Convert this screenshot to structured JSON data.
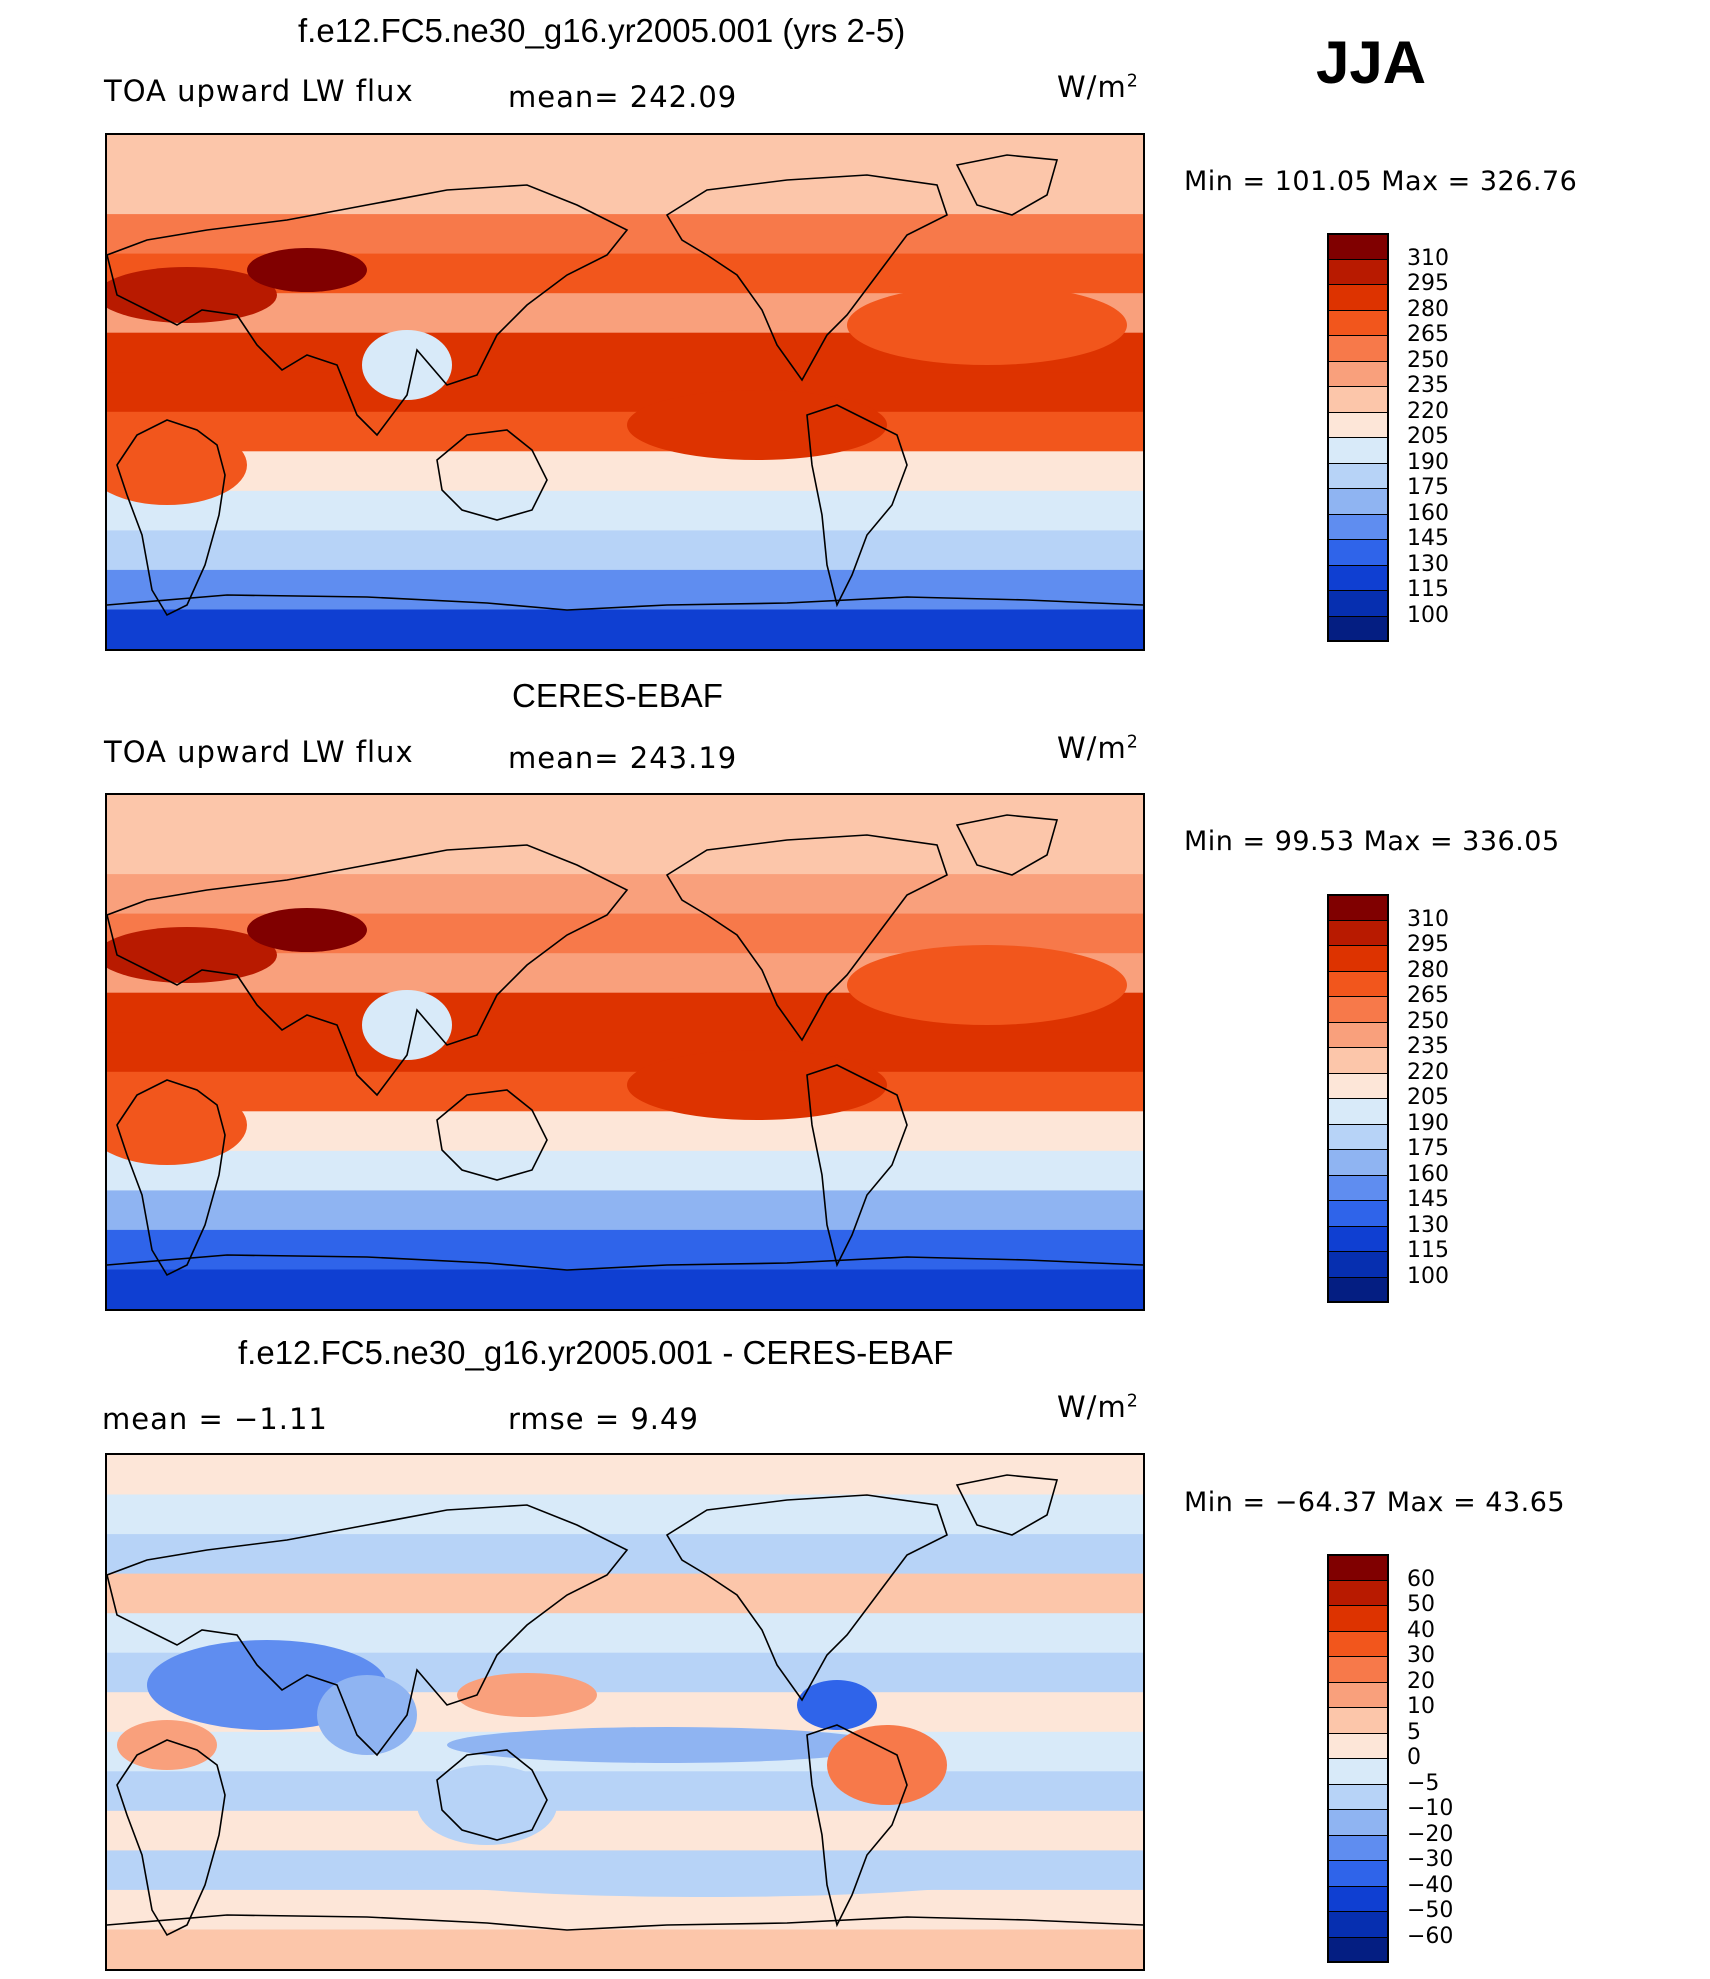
{
  "season": "JJA",
  "panels": [
    {
      "id": "model",
      "title": "f.e12.FC5.ne30_g16.yr2005.001 (yrs 2-5)",
      "left_label": "TOA upward LW flux",
      "center_label": "mean= 242.09",
      "units_base": "W/m",
      "units_exp": "2",
      "minmax": "Min = 101.05 Max = 326.76",
      "colorbar": {
        "labels": [
          "310",
          "295",
          "280",
          "265",
          "250",
          "235",
          "220",
          "205",
          "190",
          "175",
          "160",
          "145",
          "130",
          "115",
          "100"
        ],
        "colors": [
          "#800000",
          "#b81a00",
          "#dd3300",
          "#f2561c",
          "#f7794a",
          "#f9a07c",
          "#fcc6aa",
          "#fde6d8",
          "#d8eaf9",
          "#b7d3f7",
          "#8fb4f2",
          "#5f8df0",
          "#2f64ea",
          "#0f3fd2",
          "#062fb0",
          "#041e82"
        ]
      },
      "map_bands": [
        "#fcc6aa",
        "#fcc6aa",
        "#f7794a",
        "#f2561c",
        "#f9a07c",
        "#dd3300",
        "#dd3300",
        "#f2561c",
        "#fde6d8",
        "#d8eaf9",
        "#b7d3f7",
        "#5f8df0",
        "#0f3fd2"
      ]
    },
    {
      "id": "obs",
      "title": "CERES-EBAF",
      "left_label": "TOA upward LW flux",
      "center_label": "mean= 243.19",
      "units_base": "W/m",
      "units_exp": "2",
      "minmax": "Min =   99.53 Max = 336.05",
      "colorbar": {
        "labels": [
          "310",
          "295",
          "280",
          "265",
          "250",
          "235",
          "220",
          "205",
          "190",
          "175",
          "160",
          "145",
          "130",
          "115",
          "100"
        ],
        "colors": [
          "#800000",
          "#b81a00",
          "#dd3300",
          "#f2561c",
          "#f7794a",
          "#f9a07c",
          "#fcc6aa",
          "#fde6d8",
          "#d8eaf9",
          "#b7d3f7",
          "#8fb4f2",
          "#5f8df0",
          "#2f64ea",
          "#0f3fd2",
          "#062fb0",
          "#041e82"
        ]
      },
      "map_bands": [
        "#fcc6aa",
        "#fcc6aa",
        "#f9a07c",
        "#f7794a",
        "#f9a07c",
        "#dd3300",
        "#dd3300",
        "#f2561c",
        "#fde6d8",
        "#d8eaf9",
        "#8fb4f2",
        "#2f64ea",
        "#0f3fd2"
      ]
    },
    {
      "id": "diff",
      "title": "f.e12.FC5.ne30_g16.yr2005.001 - CERES-EBAF",
      "left_label": "mean =    −1.11",
      "center_label": "rmse =     9.49",
      "units_base": "W/m",
      "units_exp": "2",
      "minmax": "Min = −64.37 Max =   43.65",
      "colorbar": {
        "labels": [
          "60",
          "50",
          "40",
          "30",
          "20",
          "10",
          "5",
          "0",
          "−5",
          "−10",
          "−20",
          "−30",
          "−40",
          "−50",
          "−60"
        ],
        "colors": [
          "#800000",
          "#b81a00",
          "#dd3300",
          "#f2561c",
          "#f7794a",
          "#f9a07c",
          "#fcc6aa",
          "#fde6d8",
          "#d8eaf9",
          "#b7d3f7",
          "#8fb4f2",
          "#5f8df0",
          "#2f64ea",
          "#0f3fd2",
          "#062fb0",
          "#041e82"
        ]
      },
      "map_bands": [
        "#fde6d8",
        "#d8eaf9",
        "#b7d3f7",
        "#fcc6aa",
        "#d8eaf9",
        "#b7d3f7",
        "#fde6d8",
        "#d8eaf9",
        "#b7d3f7",
        "#fde6d8",
        "#b7d3f7",
        "#fde6d8",
        "#fcc6aa"
      ]
    }
  ]
}
